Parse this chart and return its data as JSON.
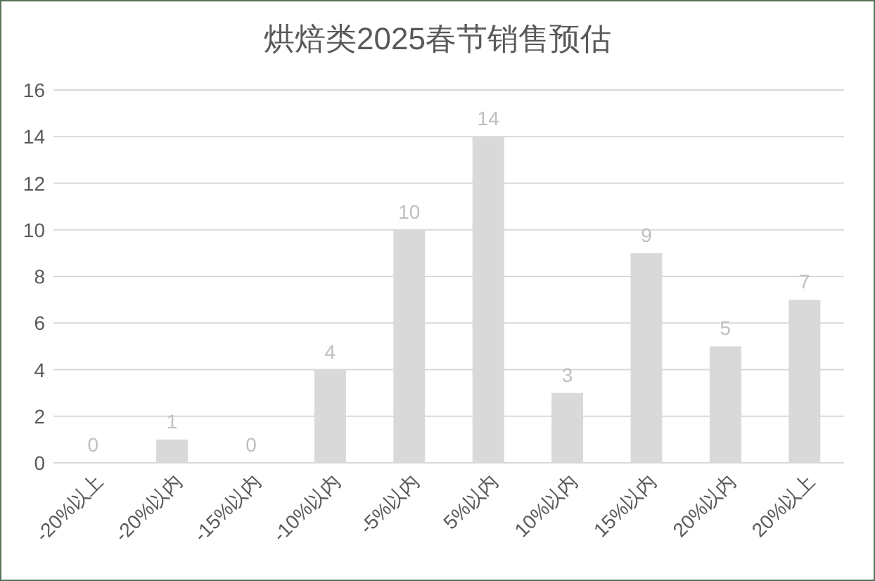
{
  "chart_data": {
    "type": "bar",
    "title": "烘焙类2025春节销售预估",
    "categories": [
      "-20%以上",
      "-20%以内",
      "-15%以内",
      "-10%以内",
      "-5%以内",
      "5%以内",
      "10%以内",
      "15%以内",
      "20%以内",
      "20%以上"
    ],
    "values": [
      0,
      1,
      0,
      4,
      10,
      14,
      3,
      9,
      5,
      7
    ],
    "color": "#d9d9d9",
    "ylim": [
      0,
      16
    ],
    "yticks": [
      0,
      2,
      4,
      6,
      8,
      10,
      12,
      14,
      16
    ],
    "grid": "y",
    "data_labels": true
  }
}
